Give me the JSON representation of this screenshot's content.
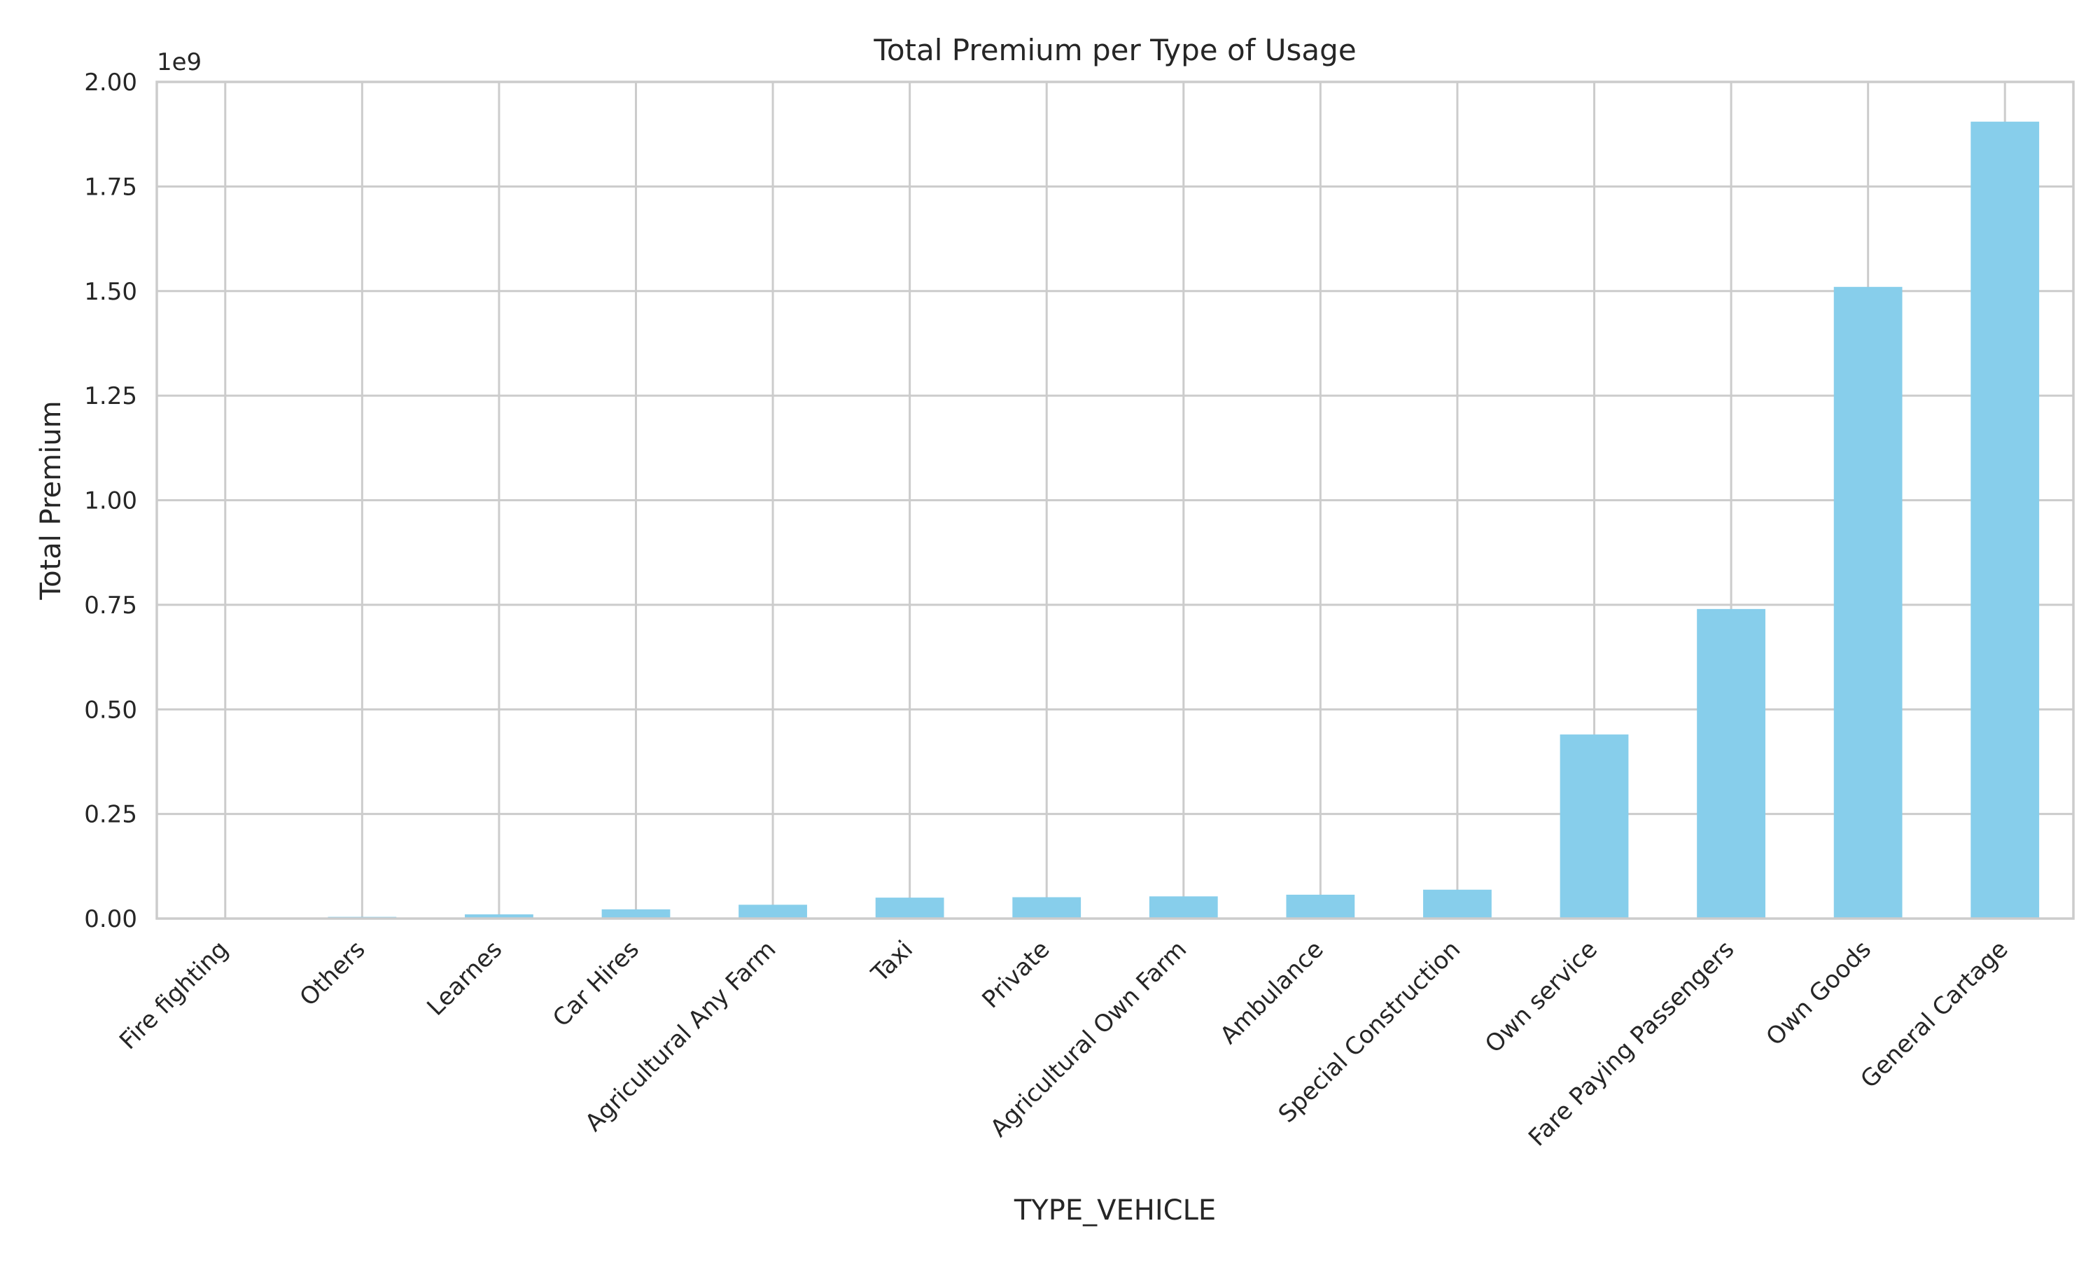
{
  "chart_data": {
    "type": "bar",
    "title": "Total Premium per Type of Usage",
    "xlabel": "TYPE_VEHICLE",
    "ylabel": "Total Premium",
    "y_offset_label": "1e9",
    "ylim": [
      0,
      2000000000
    ],
    "y_ticks": [
      {
        "value": 0,
        "label": "0.00"
      },
      {
        "value": 250000000,
        "label": "0.25"
      },
      {
        "value": 500000000,
        "label": "0.50"
      },
      {
        "value": 750000000,
        "label": "0.75"
      },
      {
        "value": 1000000000,
        "label": "1.00"
      },
      {
        "value": 1250000000,
        "label": "1.25"
      },
      {
        "value": 1500000000,
        "label": "1.50"
      },
      {
        "value": 1750000000,
        "label": "1.75"
      },
      {
        "value": 2000000000,
        "label": "2.00"
      }
    ],
    "categories": [
      "Fire fighting",
      "Others",
      "Learnes",
      "Car Hires",
      "Agricultural Any Farm",
      "Taxi",
      "Private",
      "Agricultural Own Farm",
      "Ambulance",
      "Special Construction",
      "Own service",
      "Fare Paying Passengers",
      "Own Goods",
      "General Cartage"
    ],
    "values": [
      1000000,
      4000000,
      10000000,
      22000000,
      33000000,
      50000000,
      51000000,
      53000000,
      57000000,
      69000000,
      440000000,
      740000000,
      1510000000,
      1905000000
    ],
    "bar_color": "#87ceeb",
    "grid": true,
    "tick_rotation_deg": 45
  }
}
